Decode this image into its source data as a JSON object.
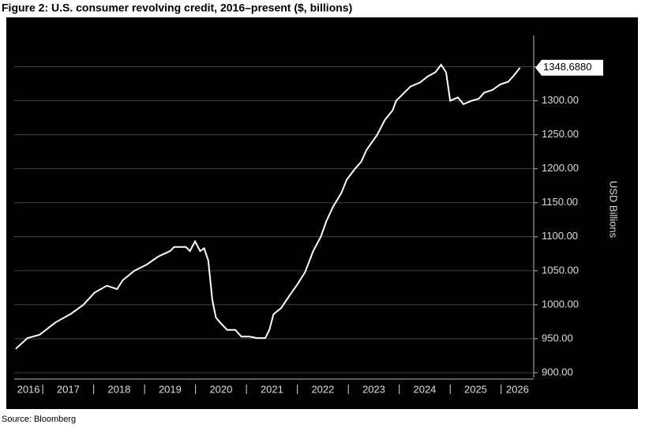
{
  "chart_data": {
    "type": "line",
    "title": "Figure 2: U.S. consumer revolving credit, 2016–present ($, billions)",
    "ylabel": "USD Billions",
    "source": "Source: Bloomberg",
    "x": [
      2016.47,
      2016.7,
      2016.94,
      2017.25,
      2017.56,
      2017.8,
      2018.02,
      2018.26,
      2018.46,
      2018.57,
      2018.8,
      2019.04,
      2019.27,
      2019.5,
      2019.58,
      2019.81,
      2019.89,
      2019.99,
      2020.09,
      2020.17,
      2020.25,
      2020.33,
      2020.4,
      2020.48,
      2020.62,
      2020.78,
      2020.9,
      2021.06,
      2021.21,
      2021.37,
      2021.45,
      2021.53,
      2021.68,
      2021.84,
      2022.0,
      2022.15,
      2022.31,
      2022.46,
      2022.57,
      2022.7,
      2022.86,
      2022.97,
      2023.12,
      2023.25,
      2023.36,
      2023.56,
      2023.72,
      2023.87,
      2023.94,
      2024.1,
      2024.22,
      2024.41,
      2024.56,
      2024.71,
      2024.82,
      2024.92,
      2025.0,
      2025.15,
      2025.26,
      2025.42,
      2025.56,
      2025.67,
      2025.83,
      2025.98,
      2026.14,
      2026.26,
      2026.37
    ],
    "series": [
      {
        "color": "#ffffff",
        "values": [
          935,
          951,
          956,
          974,
          987,
          1000,
          1018,
          1028,
          1023,
          1036,
          1050,
          1059,
          1071,
          1079,
          1085,
          1085,
          1079,
          1093,
          1079,
          1083,
          1065,
          1007,
          981,
          974,
          963,
          963,
          953,
          953,
          951,
          951,
          963,
          986,
          995,
          1013,
          1030,
          1048,
          1079,
          1100,
          1123,
          1144,
          1164,
          1184,
          1199,
          1210,
          1228,
          1249,
          1272,
          1286,
          1300,
          1312,
          1321,
          1327,
          1336,
          1342,
          1353,
          1342,
          1300,
          1305,
          1295,
          1300,
          1303,
          1312,
          1316,
          1324,
          1328,
          1338,
          1348.688
        ],
        "value_labels": [
          null,
          null,
          null,
          null,
          null,
          null,
          null,
          null,
          null,
          null,
          null,
          null,
          null,
          null,
          null,
          null,
          null,
          null,
          null,
          null,
          null,
          null,
          null,
          null,
          null,
          null,
          null,
          null,
          null,
          null,
          null,
          null,
          null,
          null,
          null,
          null,
          null,
          null,
          null,
          null,
          null,
          null,
          null,
          null,
          null,
          null,
          null,
          null,
          null,
          null,
          null,
          null,
          null,
          null,
          null,
          null,
          null,
          null,
          null,
          null,
          null,
          null,
          null,
          null,
          null,
          null,
          "1348.6880"
        ]
      }
    ],
    "xlim": [
      2016.44,
      2026.64
    ],
    "xticks": [
      {
        "value": 2016,
        "label": "2016"
      },
      {
        "value": 2017,
        "label": "2017"
      },
      {
        "value": 2018,
        "label": "2018"
      },
      {
        "value": 2019,
        "label": "2019"
      },
      {
        "value": 2020,
        "label": "2020"
      },
      {
        "value": 2021,
        "label": "2021"
      },
      {
        "value": 2022,
        "label": "2022"
      },
      {
        "value": 2023,
        "label": "2023"
      },
      {
        "value": 2024,
        "label": "2024"
      },
      {
        "value": 2025,
        "label": "2025"
      },
      {
        "value": 2026,
        "label": "2026"
      }
    ],
    "ylim": [
      893,
      1396
    ],
    "yticks": [
      {
        "value": 900,
        "label": "900.00"
      },
      {
        "value": 950,
        "label": "950.00"
      },
      {
        "value": 1000,
        "label": "1000.00"
      },
      {
        "value": 1050,
        "label": "1050.00"
      },
      {
        "value": 1100,
        "label": "1100.00"
      },
      {
        "value": 1150,
        "label": "1150.00"
      },
      {
        "value": 1200,
        "label": "1200.00"
      },
      {
        "value": 1250,
        "label": "1250.00"
      },
      {
        "value": 1300,
        "label": "1300.00"
      },
      {
        "value": 1350,
        "label": "1350.00"
      }
    ],
    "grid": true
  }
}
